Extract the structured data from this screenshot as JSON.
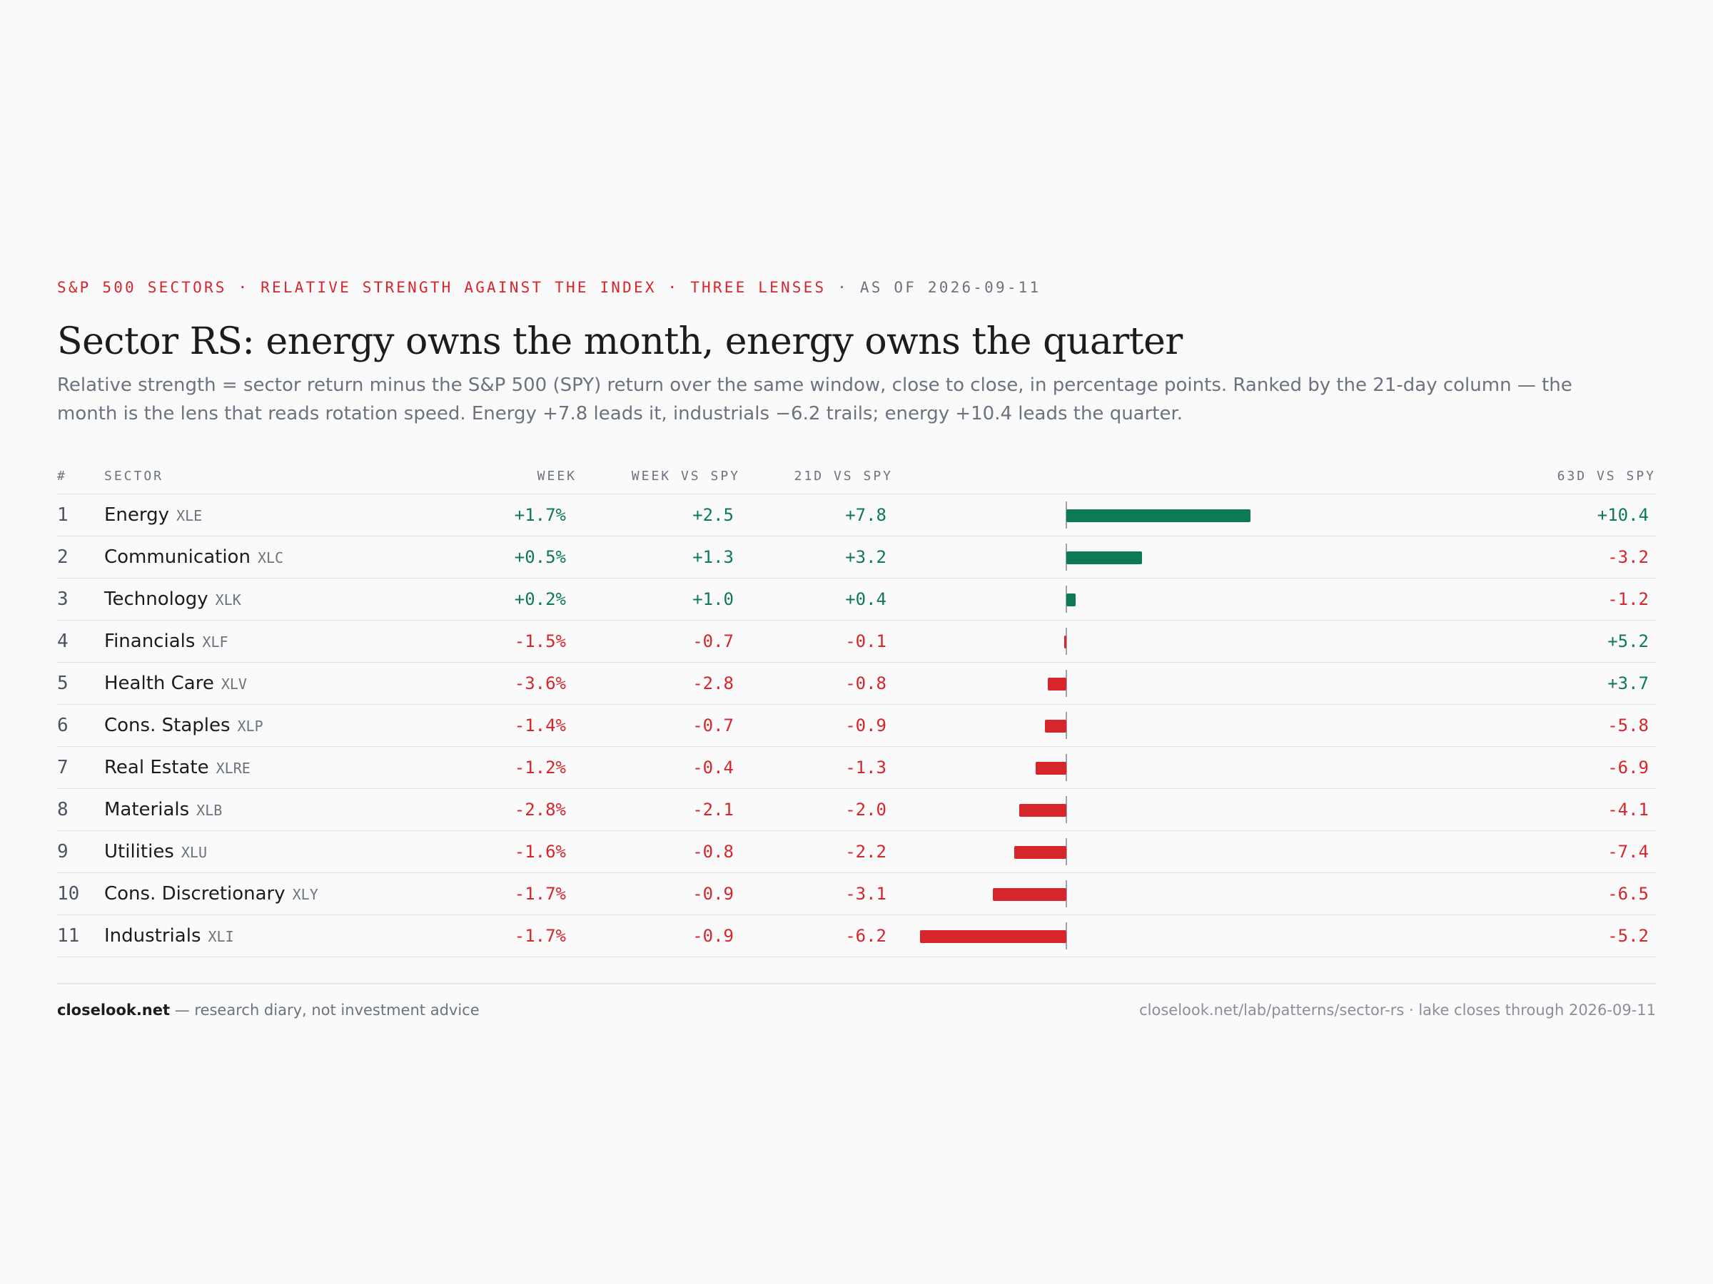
{
  "kicker": {
    "part1": "S&P 500 SECTORS · RELATIVE STRENGTH AGAINST THE INDEX · THREE LENSES",
    "part2": " · AS OF 2026-09-11"
  },
  "title": "Sector RS: energy owns the month, energy owns the quarter",
  "subtitle": "Relative strength = sector return minus the S&P 500 (SPY) return over the same window, close to close, in percentage points. Ranked by the 21-day column — the month is the lens that reads rotation speed. Energy +7.8 leads it, industrials −6.2 trails; energy +10.4 leads the quarter.",
  "columns": {
    "rank": "#",
    "sector": "SECTOR",
    "week": "WEEK",
    "week_vs_spy": "WEEK VS SPY",
    "d21_vs_spy": "21D VS SPY",
    "d63_vs_spy": "63D VS SPY"
  },
  "colors": {
    "positive": "#0e7a55",
    "negative": "#d7262b"
  },
  "chart_data": {
    "type": "bar",
    "series": [
      {
        "values": [
          7.8,
          3.2,
          0.4,
          -0.1,
          -0.8,
          -0.9,
          -1.3,
          -2.0,
          -2.2,
          -3.1,
          -6.2
        ]
      }
    ]
  },
  "rows": [
    {
      "rank": "1",
      "sector": "Energy",
      "ticker": "XLE",
      "week": "+1.7%",
      "week_vs_spy": "+2.5",
      "d21": "+7.8",
      "d21_value": 7.8,
      "d63": "+10.4"
    },
    {
      "rank": "2",
      "sector": "Communication",
      "ticker": "XLC",
      "week": "+0.5%",
      "week_vs_spy": "+1.3",
      "d21": "+3.2",
      "d21_value": 3.2,
      "d63": "-3.2"
    },
    {
      "rank": "3",
      "sector": "Technology",
      "ticker": "XLK",
      "week": "+0.2%",
      "week_vs_spy": "+1.0",
      "d21": "+0.4",
      "d21_value": 0.4,
      "d63": "-1.2"
    },
    {
      "rank": "4",
      "sector": "Financials",
      "ticker": "XLF",
      "week": "-1.5%",
      "week_vs_spy": "-0.7",
      "d21": "-0.1",
      "d21_value": -0.1,
      "d63": "+5.2"
    },
    {
      "rank": "5",
      "sector": "Health Care",
      "ticker": "XLV",
      "week": "-3.6%",
      "week_vs_spy": "-2.8",
      "d21": "-0.8",
      "d21_value": -0.8,
      "d63": "+3.7"
    },
    {
      "rank": "6",
      "sector": "Cons. Staples",
      "ticker": "XLP",
      "week": "-1.4%",
      "week_vs_spy": "-0.7",
      "d21": "-0.9",
      "d21_value": -0.9,
      "d63": "-5.8"
    },
    {
      "rank": "7",
      "sector": "Real Estate",
      "ticker": "XLRE",
      "week": "-1.2%",
      "week_vs_spy": "-0.4",
      "d21": "-1.3",
      "d21_value": -1.3,
      "d63": "-6.9"
    },
    {
      "rank": "8",
      "sector": "Materials",
      "ticker": "XLB",
      "week": "-2.8%",
      "week_vs_spy": "-2.1",
      "d21": "-2.0",
      "d21_value": -2.0,
      "d63": "-4.1"
    },
    {
      "rank": "9",
      "sector": "Utilities",
      "ticker": "XLU",
      "week": "-1.6%",
      "week_vs_spy": "-0.8",
      "d21": "-2.2",
      "d21_value": -2.2,
      "d63": "-7.4"
    },
    {
      "rank": "10",
      "sector": "Cons. Discretionary",
      "ticker": "XLY",
      "week": "-1.7%",
      "week_vs_spy": "-0.9",
      "d21": "-3.1",
      "d21_value": -3.1,
      "d63": "-6.5"
    },
    {
      "rank": "11",
      "sector": "Industrials",
      "ticker": "XLI",
      "week": "-1.7%",
      "week_vs_spy": "-0.9",
      "d21": "-6.2",
      "d21_value": -6.2,
      "d63": "-5.2"
    }
  ],
  "footer": {
    "brand": "closelook.net",
    "tagline": " — research diary, not investment advice",
    "right": "closelook.net/lab/patterns/sector-rs · lake closes through 2026-09-11"
  }
}
